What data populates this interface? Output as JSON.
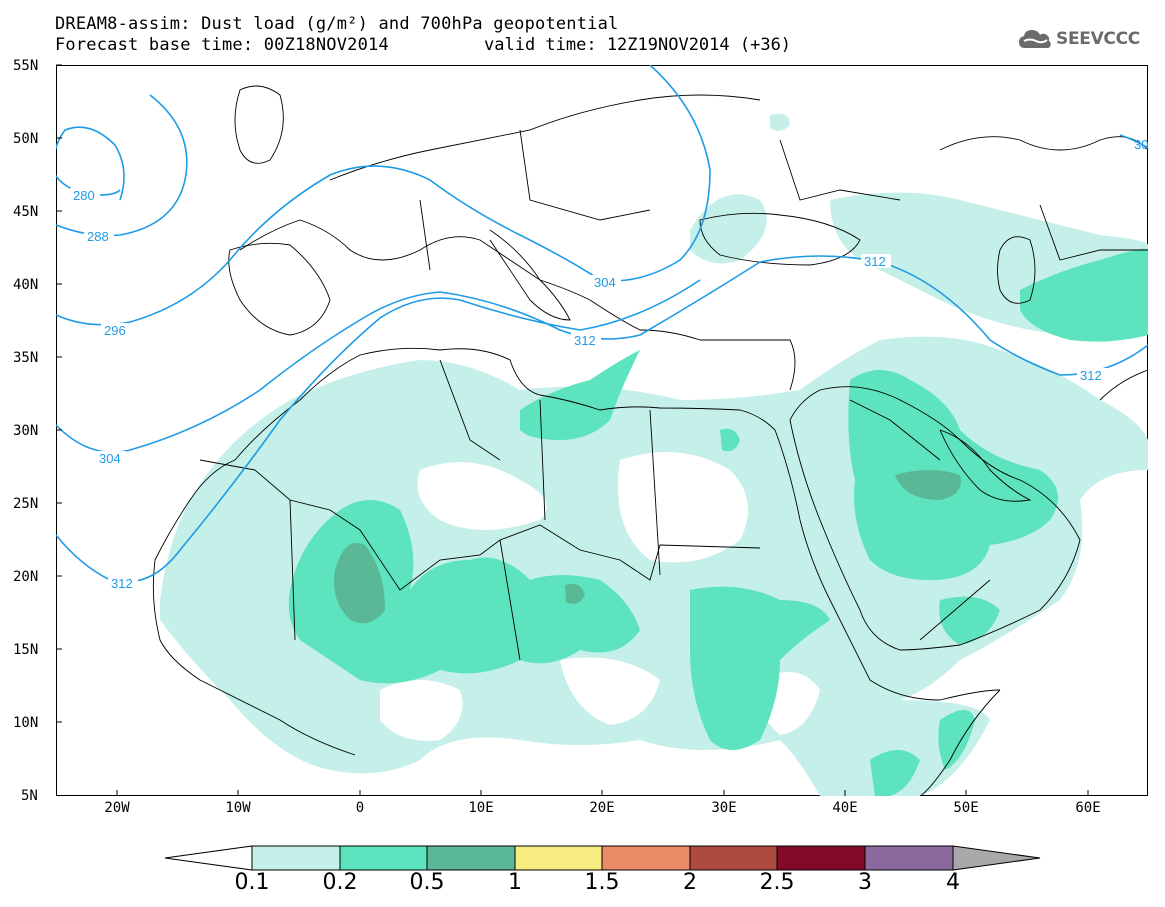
{
  "header": {
    "title_line1": "DREAM8-assim: Dust load (g/m²) and 700hPa geopotential",
    "title_line2": "Forecast base time: 00Z18NOV2014",
    "valid_time": "valid time: 12Z19NOV2014 (+36)",
    "logo_text": "SEEVCCC",
    "logo_icon": "cloud-logo-icon"
  },
  "axes": {
    "lat_labels": [
      "55N",
      "50N",
      "45N",
      "40N",
      "35N",
      "30N",
      "25N",
      "20N",
      "15N",
      "10N",
      "5N"
    ],
    "lon_labels": [
      "20W",
      "10W",
      "0",
      "10E",
      "20E",
      "30E",
      "40E",
      "50E",
      "60E"
    ],
    "lat_range": [
      5,
      55
    ],
    "lon_range": [
      -25,
      65
    ]
  },
  "contours": {
    "color": "#1e9be6",
    "labels": [
      "280",
      "288",
      "296",
      "304",
      "312",
      "304",
      "312",
      "312",
      "312",
      "30"
    ]
  },
  "legend": {
    "labels": [
      "0.1",
      "0.2",
      "0.5",
      "1",
      "1.5",
      "2",
      "2.5",
      "3",
      "4"
    ],
    "colors": [
      "#c5efe9",
      "#5de3bd",
      "#5ab896",
      "#f7ec80",
      "#e98b66",
      "#ad4b40",
      "#820a28",
      "#8a6a9e"
    ],
    "low_arrow_color": "#ffffff",
    "high_arrow_color": "#a8a8a8"
  },
  "dust_colors": {
    "level1": "#c5efe9",
    "level2": "#5de3bd",
    "level3": "#5ab896"
  }
}
